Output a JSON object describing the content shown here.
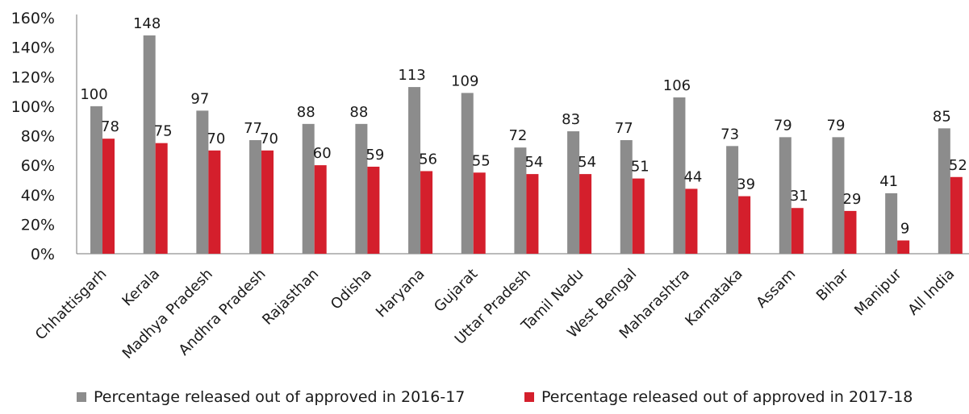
{
  "chart_data": {
    "type": "bar",
    "categories": [
      "Chhattisgarh",
      "Kerala",
      "Madhya Pradesh",
      "Andhra Pradesh",
      "Rajasthan",
      "Odisha",
      "Haryana",
      "Gujarat",
      "Uttar Pradesh",
      "Tamil Nadu",
      "West Bengal",
      "Maharashtra",
      "Karnataka",
      "Assam",
      "Bihar",
      "Manipur",
      "All India"
    ],
    "series": [
      {
        "name": "Percentage released out of approved in 2016-17",
        "color": "#8c8c8c",
        "values": [
          100,
          148,
          97,
          77,
          88,
          88,
          113,
          109,
          72,
          83,
          77,
          106,
          73,
          79,
          79,
          41,
          85
        ]
      },
      {
        "name": "Percentage released out of approved in 2017-18",
        "color": "#d41f2c",
        "values": [
          78,
          75,
          70,
          70,
          60,
          59,
          56,
          55,
          54,
          54,
          51,
          44,
          39,
          31,
          29,
          9,
          52
        ]
      }
    ],
    "y_ticks": [
      "0%",
      "20%",
      "40%",
      "60%",
      "80%",
      "100%",
      "120%",
      "140%",
      "160%"
    ],
    "ylim": [
      0,
      160
    ],
    "grid": false,
    "legend_position": "bottom"
  }
}
